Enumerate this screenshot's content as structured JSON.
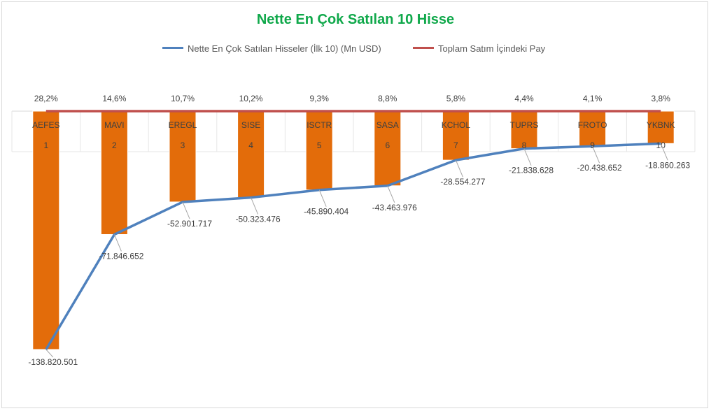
{
  "chart_data": {
    "type": "bar",
    "title": "Nette En Çok Satılan 10 Hisse",
    "categories": [
      "AEFES",
      "MAVI",
      "EREGL",
      "SISE",
      "ISCTR",
      "SASA",
      "KCHOL",
      "TUPRS",
      "FROTO",
      "YKBNK"
    ],
    "ranks": [
      "1",
      "2",
      "3",
      "4",
      "5",
      "6",
      "7",
      "8",
      "9",
      "10"
    ],
    "series": [
      {
        "name": "Nette En Çok Satılan Hisseler (İlk 10) (Mn USD)",
        "type": "bar+line",
        "values": [
          -138820501,
          -71846652,
          -52901717,
          -50323476,
          -45890404,
          -43463976,
          -28554277,
          -21838628,
          -20438652,
          -18860263
        ],
        "labels": [
          "-138.820.501",
          "-71.846.652",
          "-52.901.717",
          "-50.323.476",
          "-45.890.404",
          "-43.463.976",
          "-28.554.277",
          "-21.838.628",
          "-20.438.652",
          "-18.860.263"
        ]
      },
      {
        "name": "Toplam Satım İçindeki Pay",
        "type": "line",
        "values": [
          28.2,
          14.6,
          10.7,
          10.2,
          9.3,
          8.8,
          5.8,
          4.4,
          4.1,
          3.8
        ],
        "labels": [
          "28,2%",
          "14,6%",
          "10,7%",
          "10,2%",
          "9,3%",
          "8,8%",
          "5,8%",
          "4,4%",
          "4,1%",
          "3,8%"
        ]
      }
    ],
    "legend_position": "top",
    "colors": {
      "bars": "#e36c0a",
      "line_values": "#4f81bd",
      "line_share": "#c0504d",
      "title": "#0fa84a",
      "text": "#404040"
    },
    "grid": true
  }
}
